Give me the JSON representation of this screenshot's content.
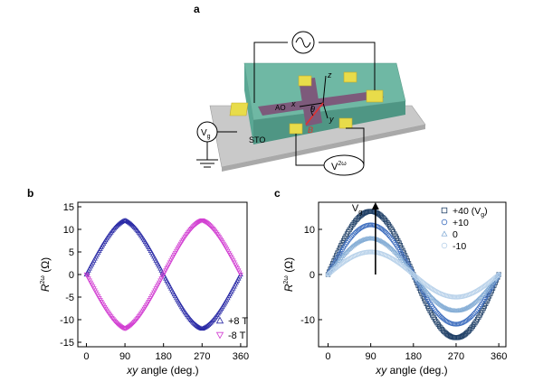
{
  "panel_labels": {
    "a": "a",
    "b": "b",
    "c": "c"
  },
  "device": {
    "labels": {
      "ao": "AO",
      "sto": "STO",
      "b": "B",
      "theta": "θ",
      "x": "x",
      "y": "y",
      "z": "z"
    },
    "vg_label": "V",
    "vg_sub": "g",
    "v2w_label": "V",
    "v2w_sup": "2ω"
  },
  "chart_data": [
    {
      "id": "b",
      "type": "scatter",
      "xlabel": "xy angle (deg.)",
      "ylabel": "R^2ω (Ω)",
      "xlim": [
        -20,
        375
      ],
      "ylim": [
        -16,
        16
      ],
      "xticks": [
        0,
        90,
        180,
        270,
        360
      ],
      "yticks": [
        -15,
        -10,
        -5,
        0,
        5,
        10,
        15
      ],
      "legend_position": "bottom-right",
      "series": [
        {
          "name": "+8 T",
          "marker": "triangle-up",
          "color": "#2a2aa6",
          "amplitude": 12.0,
          "sign": 1
        },
        {
          "name": "-8 T",
          "marker": "triangle-down",
          "color": "#d23fd2",
          "amplitude": 12.0,
          "sign": -1
        }
      ],
      "x_points": [
        0,
        10,
        20,
        30,
        40,
        50,
        60,
        70,
        80,
        90,
        100,
        110,
        120,
        130,
        140,
        150,
        160,
        170,
        180,
        190,
        200,
        210,
        220,
        230,
        240,
        250,
        260,
        270,
        280,
        290,
        300,
        310,
        320,
        330,
        340,
        350,
        360
      ]
    },
    {
      "id": "c",
      "type": "scatter",
      "xlabel": "xy angle (deg.)",
      "ylabel": "R^2ω (Ω)",
      "xlim": [
        -20,
        375
      ],
      "ylim": [
        -16,
        16
      ],
      "xticks": [
        0,
        90,
        180,
        270,
        360
      ],
      "yticks": [
        -10,
        0,
        10
      ],
      "legend_position": "top-right",
      "annotation": {
        "text": "V",
        "sub": "g",
        "arrow_x": 100,
        "arrow_y_from": 0,
        "arrow_y_to": 16
      },
      "series": [
        {
          "name": "+40 (V",
          "name_sub": "g",
          "name_tail": ")",
          "marker": "square",
          "color": "#1f3f66",
          "amplitude": 14.0
        },
        {
          "name": "+10",
          "marker": "circle",
          "color": "#3f6fbf",
          "amplitude": 11.0
        },
        {
          "name": "0",
          "marker": "triangle-up",
          "color": "#86aed6",
          "amplitude": 8.0
        },
        {
          "name": "-10",
          "marker": "circle",
          "color": "#b9d2ea",
          "amplitude": 5.0
        }
      ],
      "x_points": [
        0,
        10,
        20,
        30,
        40,
        50,
        60,
        70,
        80,
        90,
        100,
        110,
        120,
        130,
        140,
        150,
        160,
        170,
        180,
        190,
        200,
        210,
        220,
        230,
        240,
        250,
        260,
        270,
        280,
        290,
        300,
        310,
        320,
        330,
        340,
        350,
        360
      ]
    }
  ]
}
